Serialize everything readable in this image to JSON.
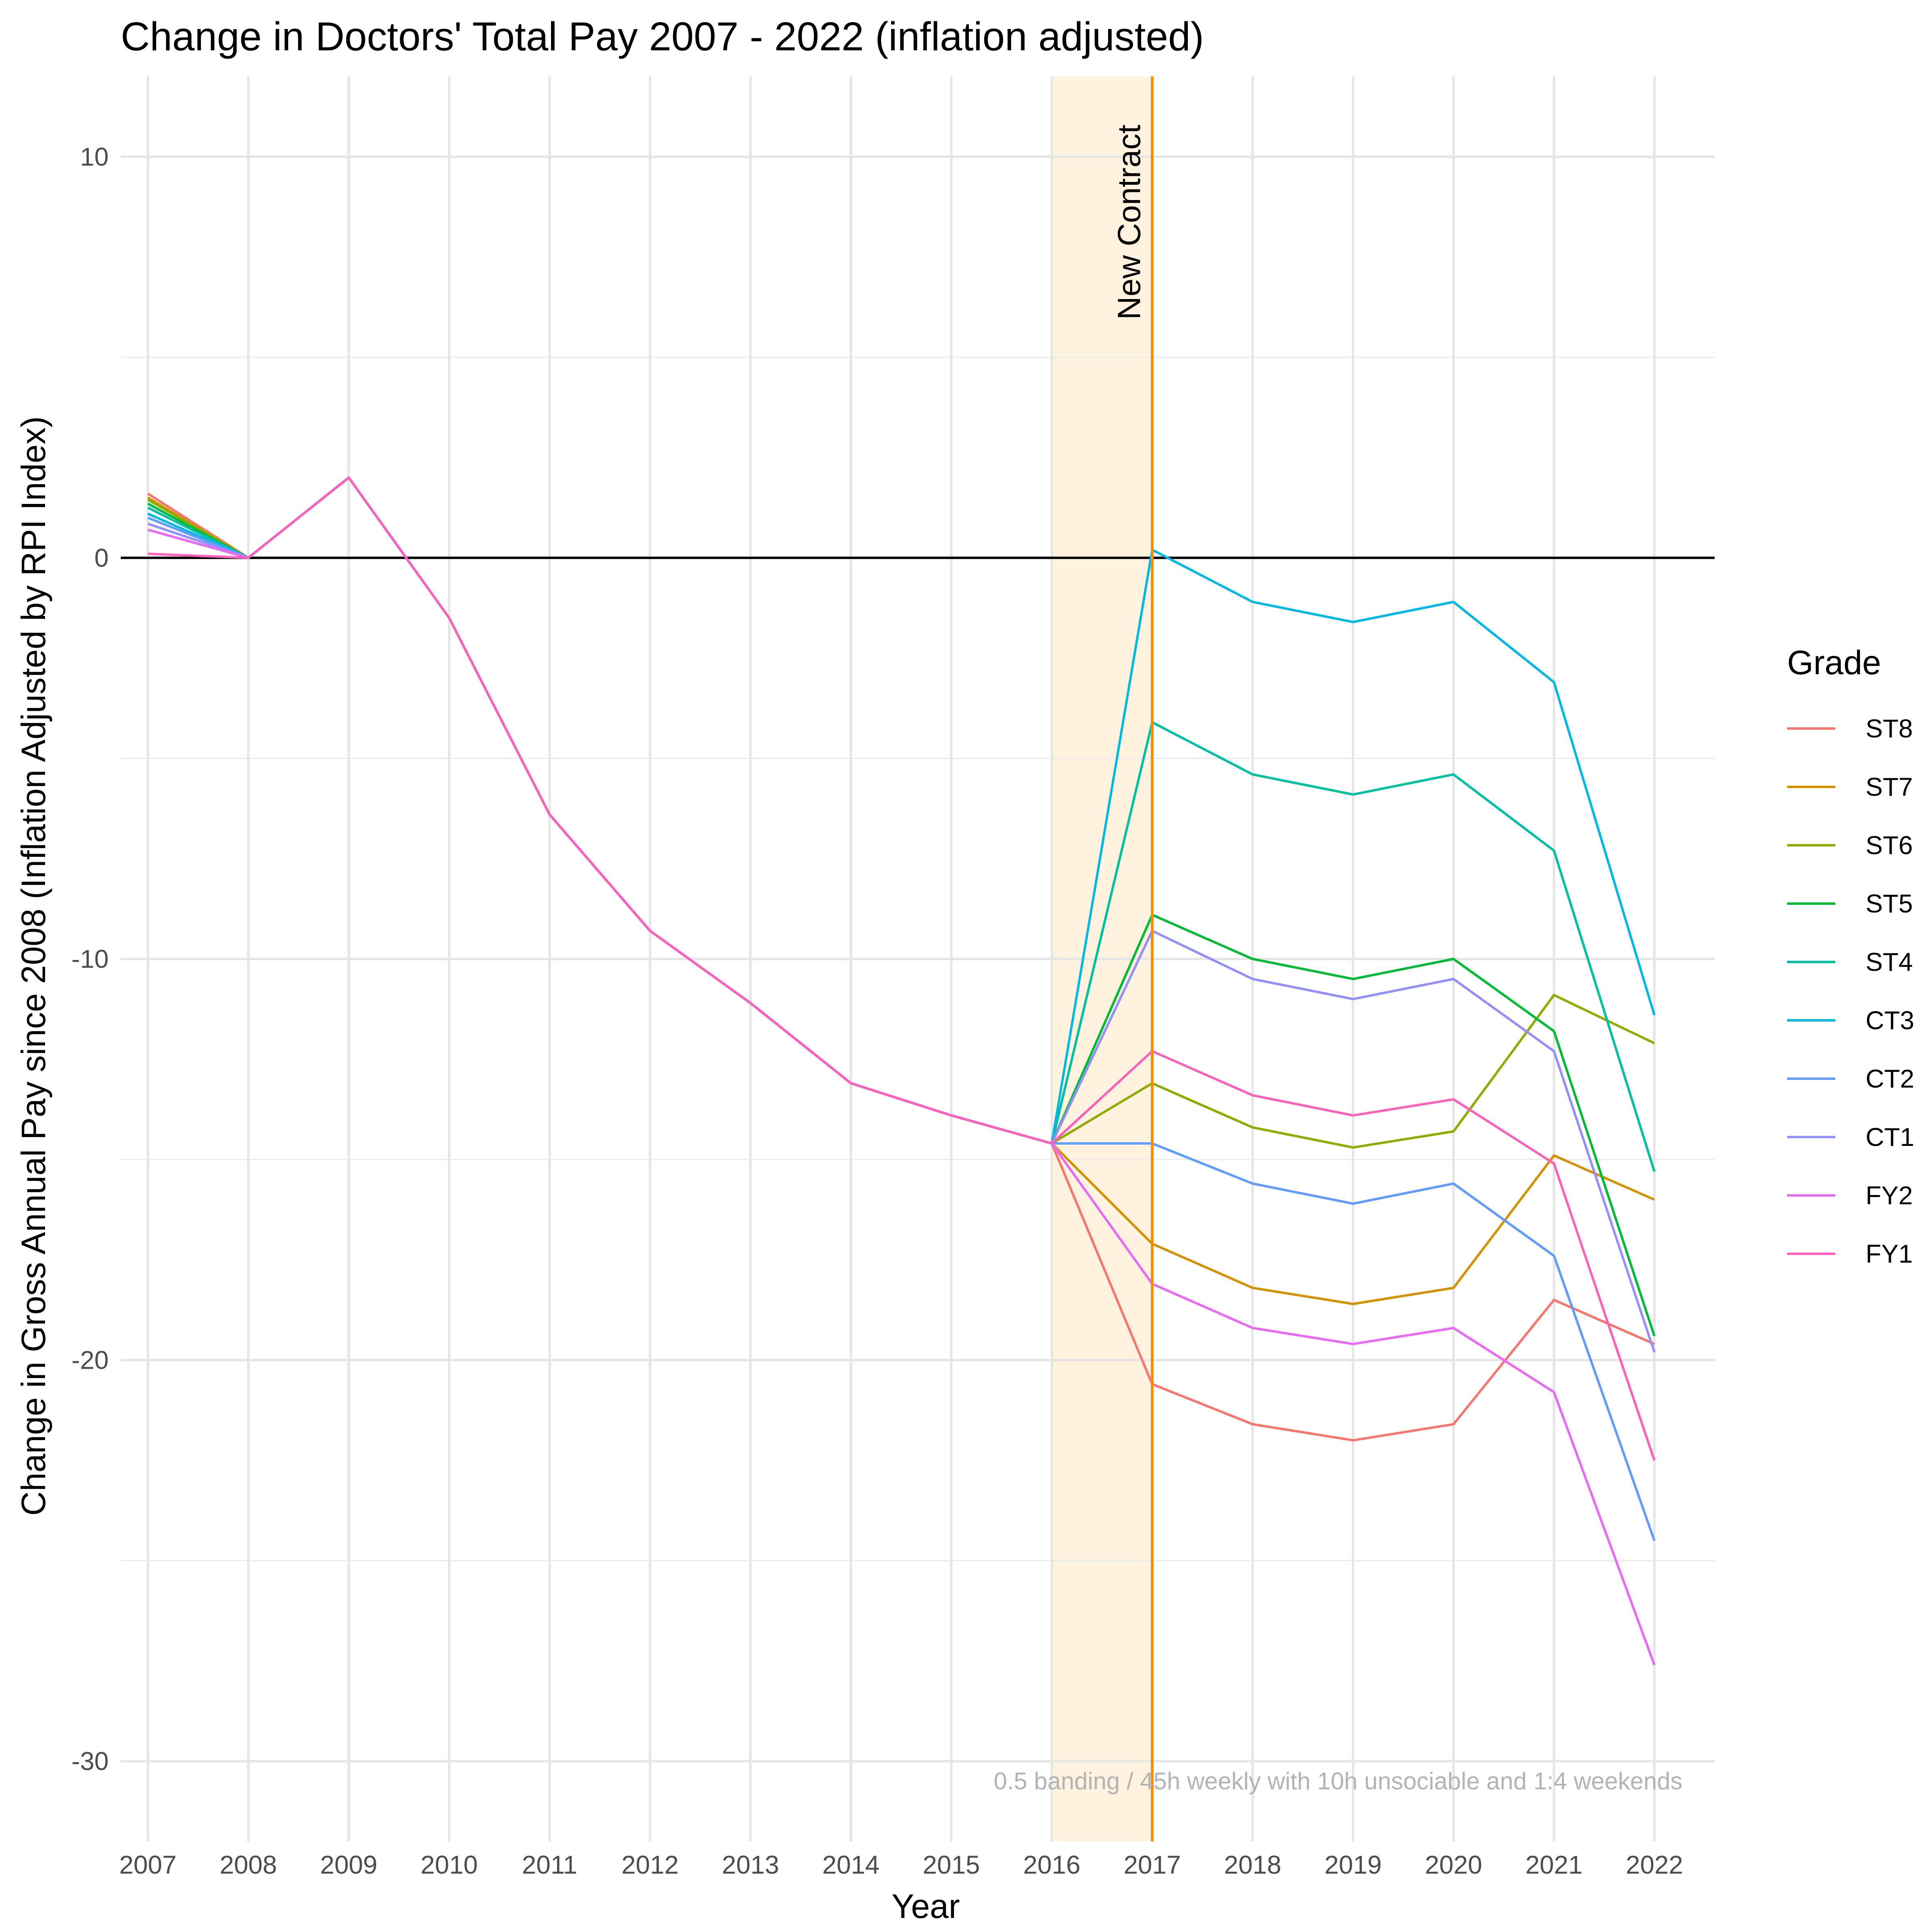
{
  "chart_data": {
    "type": "line",
    "title": "Change in Doctors' Total Pay 2007 - 2022 (inflation adjusted)",
    "xlabel": "Year",
    "ylabel": "Change in Gross Annual Pay since 2008 (Inflation Adjusted by RPI Index)",
    "x": [
      2007,
      2008,
      2009,
      2010,
      2011,
      2012,
      2013,
      2014,
      2015,
      2016,
      2017,
      2018,
      2019,
      2020,
      2021,
      2022
    ],
    "xlim": [
      2006.73,
      2022.6
    ],
    "ylim": [
      -32,
      12
    ],
    "y_ticks": [
      10,
      0,
      -10,
      -20,
      -30
    ],
    "grid": true,
    "legend_title": "Grade",
    "legend_position": "right",
    "series": [
      {
        "name": "ST8",
        "color": "#F8766D",
        "values": [
          1.6,
          0,
          2.0,
          -1.5,
          -6.4,
          -9.3,
          -11.1,
          -13.1,
          -13.9,
          -14.6,
          -20.6,
          -21.6,
          -22.0,
          -21.6,
          -18.5,
          -19.6
        ]
      },
      {
        "name": "ST7",
        "color": "#D39200",
        "values": [
          1.5,
          0,
          2.0,
          -1.5,
          -6.4,
          -9.3,
          -11.1,
          -13.1,
          -13.9,
          -14.6,
          -17.1,
          -18.2,
          -18.6,
          -18.2,
          -14.9,
          -16.0
        ]
      },
      {
        "name": "ST6",
        "color": "#93AA00",
        "values": [
          1.45,
          0,
          2.0,
          -1.5,
          -6.4,
          -9.3,
          -11.1,
          -13.1,
          -13.9,
          -14.6,
          -13.1,
          -14.2,
          -14.7,
          -14.3,
          -10.9,
          -12.1
        ]
      },
      {
        "name": "ST5",
        "color": "#00BA38",
        "values": [
          1.35,
          0,
          2.0,
          -1.5,
          -6.4,
          -9.3,
          -11.1,
          -13.1,
          -13.9,
          -14.6,
          -8.9,
          -10.0,
          -10.5,
          -10.0,
          -11.8,
          -19.4
        ]
      },
      {
        "name": "ST4",
        "color": "#00C19F",
        "values": [
          1.25,
          0,
          2.0,
          -1.5,
          -6.4,
          -9.3,
          -11.1,
          -13.1,
          -13.9,
          -14.6,
          -4.1,
          -5.4,
          -5.9,
          -5.4,
          -7.3,
          -15.3
        ]
      },
      {
        "name": "CT3",
        "color": "#00B9E3",
        "values": [
          1.1,
          0,
          2.0,
          -1.5,
          -6.4,
          -9.3,
          -11.1,
          -13.1,
          -13.9,
          -14.6,
          0.2,
          -1.1,
          -1.6,
          -1.1,
          -3.1,
          -11.4
        ]
      },
      {
        "name": "CT2",
        "color": "#619CFF",
        "values": [
          1.0,
          0,
          2.0,
          -1.5,
          -6.4,
          -9.3,
          -11.1,
          -13.1,
          -13.9,
          -14.6,
          -14.6,
          -15.6,
          -16.1,
          -15.6,
          -17.4,
          -24.5
        ]
      },
      {
        "name": "CT1",
        "color": "#9590FF",
        "values": [
          0.85,
          0,
          2.0,
          -1.5,
          -6.4,
          -9.3,
          -11.1,
          -13.1,
          -13.9,
          -14.6,
          -9.3,
          -10.5,
          -11.0,
          -10.5,
          -12.3,
          -19.8
        ]
      },
      {
        "name": "FY2",
        "color": "#E76BF3",
        "values": [
          0.7,
          0,
          2.0,
          -1.5,
          -6.4,
          -9.3,
          -11.1,
          -13.1,
          -13.9,
          -14.6,
          -18.1,
          -19.2,
          -19.6,
          -19.2,
          -20.8,
          -27.6
        ]
      },
      {
        "name": "FY1",
        "color": "#FF62BC",
        "values": [
          0.1,
          0,
          2.0,
          -1.5,
          -6.4,
          -9.3,
          -11.1,
          -13.1,
          -13.9,
          -14.6,
          -12.3,
          -13.4,
          -13.9,
          -13.5,
          -15.1,
          -22.5
        ]
      }
    ],
    "annotations": {
      "contract_label": "New Contract",
      "contract_year": 2017,
      "contract_shade_from": 2016,
      "contract_line_color": "#FF8C00",
      "contract_shade_color": "#FFF3E0",
      "caption": "0.5 banding / 45h weekly with 10h unsociable and 1:4 weekends",
      "baseline": 0
    }
  }
}
